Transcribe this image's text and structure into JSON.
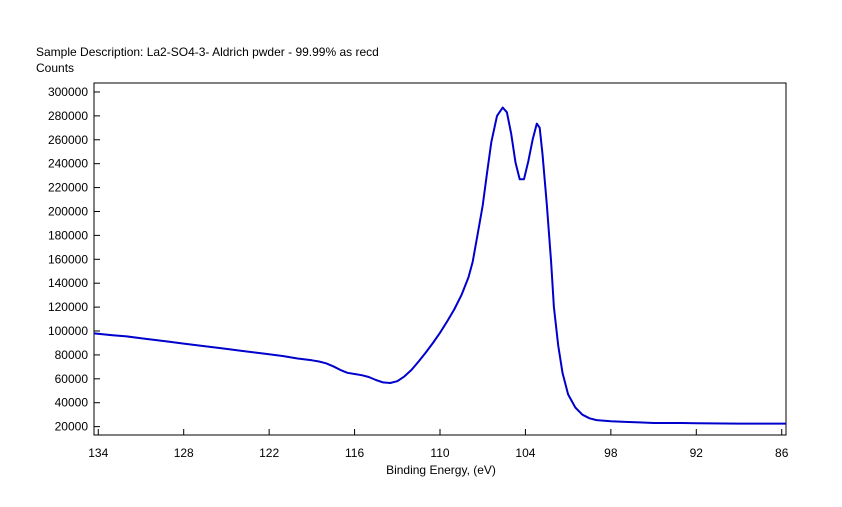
{
  "chart_data": {
    "type": "line",
    "title": "Sample Description:  La2-SO4-3- Aldrich pwder - 99.99% as recd",
    "ylabel": "Counts",
    "xlabel": "Binding Energy, (eV)",
    "x_reversed": true,
    "xlim": [
      134.3,
      85.7
    ],
    "ylim": [
      13000,
      307500
    ],
    "x_ticks": [
      134,
      128,
      122,
      116,
      110,
      104,
      98,
      92,
      86
    ],
    "y_ticks": [
      20000,
      40000,
      60000,
      80000,
      100000,
      120000,
      140000,
      160000,
      180000,
      200000,
      220000,
      240000,
      260000,
      280000,
      300000
    ],
    "grid": false,
    "line_color": "#0000cc",
    "series": [
      {
        "x": [
          134.3,
          133,
          132,
          131,
          130,
          129,
          128,
          127,
          126,
          125,
          124,
          123,
          122,
          121,
          120,
          119,
          118.5,
          118,
          117.5,
          117,
          116.5,
          116,
          115.5,
          115,
          114.5,
          114,
          113.5,
          113,
          112.5,
          112,
          111.5,
          111,
          110.5,
          110,
          109.5,
          109,
          108.5,
          108,
          107.7,
          107.4,
          107,
          106.7,
          106.4,
          106,
          105.6,
          105.3,
          105,
          104.7,
          104.4,
          104.1,
          103.8,
          103.5,
          103.2,
          103,
          102.8,
          102.5,
          102.2,
          102,
          101.7,
          101.4,
          101,
          100.5,
          100,
          99.5,
          99,
          98,
          97,
          96,
          95,
          94,
          93,
          92,
          91,
          90,
          89,
          88,
          87,
          86,
          85.7
        ],
        "y": [
          98000,
          96500,
          95500,
          94000,
          92500,
          91000,
          89500,
          88000,
          86500,
          85000,
          83500,
          82000,
          80500,
          79000,
          77000,
          75500,
          74500,
          73000,
          70500,
          67500,
          65000,
          64000,
          63000,
          61500,
          59000,
          57000,
          56500,
          58000,
          62000,
          67500,
          74500,
          82000,
          90000,
          98500,
          108000,
          118000,
          130000,
          145000,
          158000,
          178000,
          205000,
          232000,
          258000,
          280000,
          287000,
          283000,
          265000,
          241000,
          227000,
          227000,
          242000,
          260000,
          273500,
          270000,
          248000,
          206000,
          158000,
          120000,
          88000,
          65000,
          47000,
          36000,
          30000,
          27000,
          25500,
          24500,
          24000,
          23500,
          23000,
          23000,
          23000,
          22800,
          22700,
          22600,
          22500,
          22500,
          22500,
          22500,
          22500
        ]
      }
    ]
  }
}
